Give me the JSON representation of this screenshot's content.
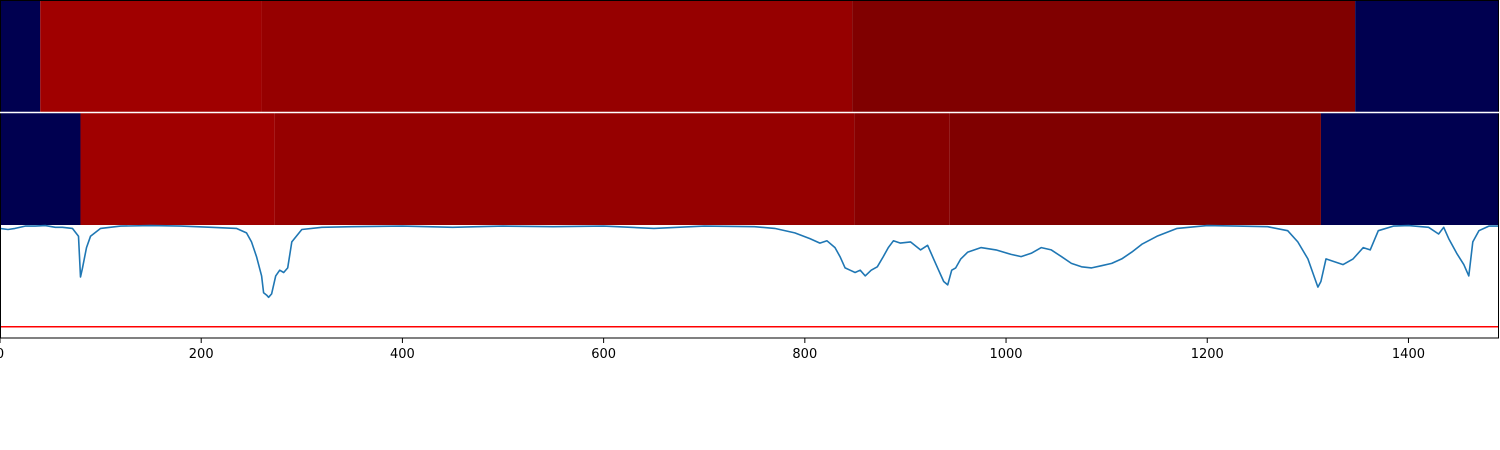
{
  "chart_data": {
    "type": "line",
    "xlim": [
      0,
      1490
    ],
    "x_ticks": [
      0,
      200,
      400,
      600,
      800,
      1000,
      1200,
      1400
    ],
    "x_tick_labels": [
      "0",
      "200",
      "400",
      "600",
      "800",
      "1000",
      "1200",
      "1400"
    ],
    "grid": false,
    "legend": "none",
    "segment_tracks": [
      {
        "segments": [
          {
            "start": 0,
            "end": 40,
            "color": "#000050"
          },
          {
            "start": 40,
            "end": 260,
            "color": "#a00000"
          },
          {
            "start": 260,
            "end": 847,
            "color": "#960000"
          },
          {
            "start": 847,
            "end": 1347,
            "color": "#800000"
          },
          {
            "start": 1347,
            "end": 1490,
            "color": "#000050"
          }
        ]
      },
      {
        "segments": [
          {
            "start": 0,
            "end": 80,
            "color": "#000050"
          },
          {
            "start": 80,
            "end": 273,
            "color": "#a00000"
          },
          {
            "start": 273,
            "end": 849,
            "color": "#960000"
          },
          {
            "start": 849,
            "end": 944,
            "color": "#880000"
          },
          {
            "start": 944,
            "end": 1313,
            "color": "#800000"
          },
          {
            "start": 1313,
            "end": 1490,
            "color": "#000050"
          }
        ]
      }
    ],
    "series": [
      {
        "color": "#1f77b4",
        "ylim": [
          0,
          1
        ],
        "x": [
          0,
          8,
          15,
          25,
          35,
          45,
          55,
          62,
          72,
          78,
          80,
          82,
          86,
          90,
          100,
          120,
          150,
          180,
          210,
          235,
          245,
          250,
          255,
          260,
          262,
          265,
          267,
          270,
          274,
          278,
          282,
          286,
          290,
          300,
          320,
          350,
          400,
          450,
          500,
          550,
          600,
          650,
          700,
          750,
          770,
          790,
          805,
          815,
          822,
          830,
          835,
          840,
          845,
          850,
          855,
          860,
          866,
          872,
          878,
          883,
          888,
          895,
          905,
          915,
          922,
          928,
          933,
          938,
          942,
          946,
          950,
          955,
          962,
          975,
          990,
          1005,
          1015,
          1025,
          1035,
          1045,
          1055,
          1065,
          1075,
          1085,
          1095,
          1105,
          1115,
          1125,
          1135,
          1150,
          1170,
          1200,
          1230,
          1260,
          1280,
          1290,
          1300,
          1306,
          1310,
          1313,
          1318,
          1325,
          1335,
          1345,
          1355,
          1362,
          1370,
          1385,
          1400,
          1420,
          1430,
          1435,
          1440,
          1448,
          1455,
          1460,
          1464,
          1470,
          1480,
          1490
        ],
        "y": [
          0.97,
          0.96,
          0.97,
          0.99,
          0.99,
          0.995,
          0.98,
          0.98,
          0.97,
          0.9,
          0.54,
          0.62,
          0.8,
          0.9,
          0.97,
          0.99,
          0.995,
          0.99,
          0.98,
          0.97,
          0.93,
          0.85,
          0.72,
          0.55,
          0.4,
          0.38,
          0.36,
          0.39,
          0.55,
          0.6,
          0.58,
          0.62,
          0.85,
          0.96,
          0.98,
          0.985,
          0.99,
          0.98,
          0.99,
          0.985,
          0.99,
          0.97,
          0.99,
          0.985,
          0.97,
          0.93,
          0.88,
          0.84,
          0.86,
          0.8,
          0.72,
          0.62,
          0.6,
          0.58,
          0.6,
          0.55,
          0.6,
          0.63,
          0.72,
          0.8,
          0.86,
          0.84,
          0.85,
          0.78,
          0.82,
          0.7,
          0.6,
          0.5,
          0.47,
          0.6,
          0.62,
          0.7,
          0.76,
          0.8,
          0.78,
          0.74,
          0.72,
          0.75,
          0.8,
          0.78,
          0.72,
          0.66,
          0.63,
          0.62,
          0.64,
          0.66,
          0.7,
          0.76,
          0.83,
          0.9,
          0.97,
          0.995,
          0.99,
          0.985,
          0.95,
          0.85,
          0.7,
          0.55,
          0.45,
          0.5,
          0.7,
          0.68,
          0.65,
          0.7,
          0.8,
          0.78,
          0.95,
          0.99,
          0.995,
          0.98,
          0.92,
          0.98,
          0.88,
          0.75,
          0.65,
          0.55,
          0.85,
          0.95,
          0.99,
          0.99
        ]
      }
    ],
    "hlines": [
      {
        "y": 0.1,
        "color": "#ff0000"
      }
    ]
  }
}
